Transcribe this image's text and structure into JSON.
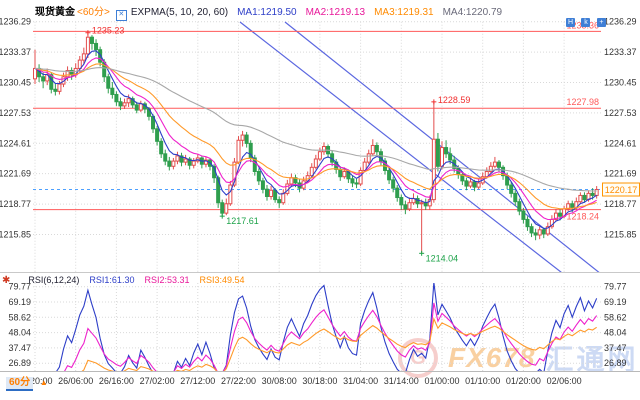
{
  "header": {
    "symbol": "现货黄金",
    "period": "<60分>",
    "checkbox_glyph": "✕",
    "indicator": "EXPMA(5, 10, 20, 60)",
    "ma_values": [
      {
        "text": "MA1:1219.50",
        "color": "#2d3ec8"
      },
      {
        "text": "MA2:1219.13",
        "color": "#e8189a"
      },
      {
        "text": "MA3:1219.31",
        "color": "#ff8a00"
      },
      {
        "text": "MA4:1220.79",
        "color": "#6a6a7a"
      }
    ],
    "toolbar_icons": [
      {
        "glyph": "H"
      },
      {
        "glyph": "k"
      },
      {
        "glyph": "+"
      }
    ]
  },
  "rsi_header": {
    "flower_glyph": "✱",
    "params": "RSI(6,12,24)",
    "values": [
      {
        "text": "RSI1:61.30",
        "color": "#2d3ec8"
      },
      {
        "text": "RSI2:53.31",
        "color": "#e8189a"
      },
      {
        "text": "RSI3:49.54",
        "color": "#ff8a00"
      }
    ]
  },
  "footer": {
    "period_tab": "60分",
    "arrow_glyph": "▲"
  },
  "watermark": {
    "logo_letter": "G",
    "brand": "FX678",
    "brand_cn": "汇通网"
  },
  "chart_data": {
    "type": "candlestick",
    "title": "现货黄金 60分 K线 + EXPMA(5,10,20,60) + RSI(6,12,24)",
    "y_axis_main": [
      1236.29,
      1233.37,
      1230.45,
      1227.53,
      1224.61,
      1221.69,
      1218.77,
      1215.85
    ],
    "y_axis_rsi": [
      79.77,
      69.19,
      58.62,
      48.04,
      37.47,
      26.89
    ],
    "x_ticks": [
      "25/20:00",
      "26/06:00",
      "26/16:00",
      "27/02:00",
      "27/12:00",
      "27/22:00",
      "30/08:00",
      "30/18:00",
      "31/04:00",
      "31/14:00",
      "01/00:00",
      "01/10:00",
      "01/20:00",
      "02/06:00"
    ],
    "levels": [
      {
        "price": 1235.36,
        "label": "1235.36",
        "color": "#ff5a5a",
        "label_pos": "above"
      },
      {
        "price": 1227.98,
        "label": "1227.98",
        "color": "#ff5a5a",
        "label_pos": "above"
      },
      {
        "price": 1218.24,
        "label": "1218.24",
        "color": "#ff5a5a",
        "label_pos": "below"
      }
    ],
    "current_price": {
      "value": 1220.17,
      "label": "1220.17",
      "line_color": "#4da0ff",
      "box_color": "#ff9500",
      "text_color": "#ff8c00"
    },
    "markers": [
      {
        "index": 13,
        "price": 1235.23,
        "label": "1235.23",
        "type": "high",
        "color": "#f03030"
      },
      {
        "index": 98,
        "price": 1228.59,
        "label": "1228.59",
        "type": "high",
        "color": "#f03030"
      },
      {
        "index": 46,
        "price": 1217.61,
        "label": "1217.61",
        "type": "low",
        "color": "#1ea34a"
      },
      {
        "index": 95,
        "price": 1214.04,
        "label": "1214.04",
        "type": "low",
        "color": "#1ea34a"
      }
    ],
    "trendlines": [
      {
        "x1": 240,
        "y1": 22,
        "x2": 575,
        "y2": 283,
        "color": "#5b67e0"
      },
      {
        "x1": 285,
        "y1": 22,
        "x2": 601,
        "y2": 274,
        "color": "#5b67e0"
      }
    ],
    "expma_periods": [
      5,
      10,
      20,
      60
    ],
    "expma_colors": [
      "#2d3ec8",
      "#ee22cc",
      "#ff9a2a",
      "#a8a8a8"
    ],
    "rsi_periods": [
      6,
      12,
      24
    ],
    "rsi_colors": [
      "#2d3ec8",
      "#ee22cc",
      "#ff9a2a"
    ],
    "candle_up_color": "#e34d4d",
    "candle_down_color": "#2f9e4e",
    "candles": [
      [
        1230.8,
        1233.6,
        1230.3,
        1231.8
      ],
      [
        1231.8,
        1232.2,
        1230.5,
        1231.0
      ],
      [
        1231.0,
        1231.4,
        1229.9,
        1230.6
      ],
      [
        1230.6,
        1231.8,
        1230.2,
        1231.2
      ],
      [
        1231.2,
        1231.4,
        1229.4,
        1229.8
      ],
      [
        1229.8,
        1230.4,
        1229.2,
        1229.6
      ],
      [
        1229.6,
        1230.6,
        1229.3,
        1230.3
      ],
      [
        1230.3,
        1231.4,
        1230.0,
        1231.0
      ],
      [
        1231.0,
        1232.0,
        1230.6,
        1231.6
      ],
      [
        1231.6,
        1231.9,
        1230.7,
        1231.2
      ],
      [
        1231.2,
        1232.3,
        1230.9,
        1231.8
      ],
      [
        1231.8,
        1233.0,
        1231.4,
        1232.6
      ],
      [
        1232.6,
        1233.8,
        1232.2,
        1233.2
      ],
      [
        1233.2,
        1235.23,
        1232.8,
        1234.8
      ],
      [
        1234.8,
        1235.0,
        1233.6,
        1234.2
      ],
      [
        1234.2,
        1234.6,
        1233.0,
        1233.6
      ],
      [
        1233.6,
        1233.9,
        1232.0,
        1232.4
      ],
      [
        1232.4,
        1232.7,
        1230.5,
        1231.0
      ],
      [
        1231.0,
        1231.3,
        1229.4,
        1229.9
      ],
      [
        1229.9,
        1230.5,
        1228.9,
        1229.3
      ],
      [
        1229.3,
        1229.6,
        1228.2,
        1228.6
      ],
      [
        1228.6,
        1229.0,
        1227.8,
        1228.2
      ],
      [
        1228.2,
        1228.9,
        1227.9,
        1228.5
      ],
      [
        1228.5,
        1229.3,
        1228.1,
        1228.9
      ],
      [
        1228.9,
        1229.1,
        1228.0,
        1228.3
      ],
      [
        1228.3,
        1228.6,
        1227.5,
        1227.8
      ],
      [
        1227.8,
        1228.7,
        1227.6,
        1228.4
      ],
      [
        1228.4,
        1228.6,
        1227.5,
        1227.9
      ],
      [
        1227.9,
        1228.1,
        1226.8,
        1227.2
      ],
      [
        1227.2,
        1227.4,
        1225.6,
        1226.0
      ],
      [
        1226.0,
        1226.3,
        1224.4,
        1224.8
      ],
      [
        1224.8,
        1225.1,
        1223.2,
        1223.6
      ],
      [
        1223.6,
        1224.0,
        1222.5,
        1222.9
      ],
      [
        1222.9,
        1223.3,
        1222.0,
        1222.4
      ],
      [
        1222.4,
        1223.2,
        1222.1,
        1222.9
      ],
      [
        1222.9,
        1223.8,
        1222.6,
        1223.4
      ],
      [
        1223.4,
        1223.7,
        1222.4,
        1222.8
      ],
      [
        1222.8,
        1223.5,
        1222.5,
        1223.1
      ],
      [
        1223.1,
        1223.3,
        1222.1,
        1222.5
      ],
      [
        1222.5,
        1223.2,
        1222.2,
        1222.9
      ],
      [
        1222.9,
        1223.6,
        1222.7,
        1223.2
      ],
      [
        1223.2,
        1223.4,
        1222.2,
        1222.6
      ],
      [
        1222.6,
        1223.3,
        1222.3,
        1223.0
      ],
      [
        1223.0,
        1223.2,
        1222.0,
        1222.4
      ],
      [
        1222.4,
        1222.6,
        1220.8,
        1221.3
      ],
      [
        1221.3,
        1221.5,
        1218.4,
        1218.9
      ],
      [
        1218.9,
        1219.2,
        1217.61,
        1217.9
      ],
      [
        1217.9,
        1219.3,
        1217.7,
        1218.8
      ],
      [
        1218.8,
        1221.0,
        1218.6,
        1220.6
      ],
      [
        1220.6,
        1223.2,
        1220.4,
        1222.8
      ],
      [
        1222.8,
        1225.3,
        1222.6,
        1224.9
      ],
      [
        1224.9,
        1225.8,
        1224.3,
        1225.4
      ],
      [
        1225.4,
        1225.7,
        1224.2,
        1224.6
      ],
      [
        1224.6,
        1224.9,
        1222.8,
        1223.2
      ],
      [
        1223.2,
        1223.5,
        1221.5,
        1221.9
      ],
      [
        1221.9,
        1222.2,
        1220.6,
        1221.0
      ],
      [
        1221.0,
        1221.3,
        1219.8,
        1220.2
      ],
      [
        1220.2,
        1220.6,
        1219.1,
        1219.5
      ],
      [
        1219.5,
        1220.5,
        1219.2,
        1220.1
      ],
      [
        1220.1,
        1220.3,
        1218.9,
        1219.2
      ],
      [
        1219.2,
        1219.5,
        1218.4,
        1218.9
      ],
      [
        1218.9,
        1220.2,
        1218.7,
        1219.8
      ],
      [
        1219.8,
        1221.1,
        1219.6,
        1220.7
      ],
      [
        1220.7,
        1221.7,
        1220.4,
        1221.3
      ],
      [
        1221.3,
        1221.6,
        1220.4,
        1220.8
      ],
      [
        1220.8,
        1221.2,
        1219.9,
        1220.3
      ],
      [
        1220.3,
        1221.4,
        1220.1,
        1221.0
      ],
      [
        1221.0,
        1221.9,
        1220.8,
        1221.5
      ],
      [
        1221.5,
        1222.7,
        1221.3,
        1222.3
      ],
      [
        1222.3,
        1223.5,
        1222.1,
        1223.1
      ],
      [
        1223.1,
        1224.2,
        1222.9,
        1223.8
      ],
      [
        1223.8,
        1224.7,
        1223.5,
        1224.3
      ],
      [
        1224.3,
        1224.5,
        1223.2,
        1223.6
      ],
      [
        1223.6,
        1223.9,
        1222.4,
        1222.8
      ],
      [
        1222.8,
        1223.1,
        1221.7,
        1222.1
      ],
      [
        1222.1,
        1222.4,
        1221.0,
        1221.4
      ],
      [
        1221.4,
        1222.3,
        1221.2,
        1221.9
      ],
      [
        1221.9,
        1222.1,
        1220.8,
        1221.2
      ],
      [
        1221.2,
        1221.5,
        1220.4,
        1220.8
      ],
      [
        1220.8,
        1221.2,
        1220.3,
        1220.7
      ],
      [
        1220.7,
        1222.3,
        1220.5,
        1222.0
      ],
      [
        1222.0,
        1223.2,
        1221.8,
        1222.8
      ],
      [
        1222.8,
        1224.0,
        1222.6,
        1223.6
      ],
      [
        1223.6,
        1225.0,
        1223.4,
        1224.4
      ],
      [
        1224.4,
        1224.7,
        1223.4,
        1223.8
      ],
      [
        1223.8,
        1224.1,
        1222.5,
        1222.9
      ],
      [
        1222.9,
        1223.2,
        1221.6,
        1222.0
      ],
      [
        1222.0,
        1222.3,
        1220.7,
        1221.1
      ],
      [
        1221.1,
        1221.4,
        1219.9,
        1220.3
      ],
      [
        1220.3,
        1220.6,
        1219.0,
        1219.4
      ],
      [
        1219.4,
        1219.7,
        1218.2,
        1218.7
      ],
      [
        1218.7,
        1219.1,
        1217.8,
        1218.3
      ],
      [
        1218.3,
        1219.4,
        1218.1,
        1218.9
      ],
      [
        1218.9,
        1219.8,
        1218.7,
        1219.3
      ],
      [
        1219.3,
        1219.6,
        1218.4,
        1218.8
      ],
      [
        1218.8,
        1219.2,
        1214.04,
        1218.9
      ],
      [
        1218.9,
        1219.3,
        1218.2,
        1218.6
      ],
      [
        1218.6,
        1219.6,
        1218.2,
        1219.2
      ],
      [
        1219.2,
        1228.59,
        1218.9,
        1225.0
      ],
      [
        1225.0,
        1225.6,
        1221.9,
        1222.4
      ],
      [
        1222.4,
        1224.8,
        1222.1,
        1224.2
      ],
      [
        1224.2,
        1224.9,
        1223.2,
        1223.6
      ],
      [
        1223.6,
        1224.2,
        1222.6,
        1223.0
      ],
      [
        1223.0,
        1223.4,
        1221.8,
        1222.2
      ],
      [
        1222.2,
        1222.5,
        1221.2,
        1221.6
      ],
      [
        1221.6,
        1221.9,
        1220.6,
        1221.0
      ],
      [
        1221.0,
        1221.3,
        1220.1,
        1220.5
      ],
      [
        1220.5,
        1221.3,
        1220.3,
        1220.9
      ],
      [
        1220.9,
        1221.1,
        1220.0,
        1220.4
      ],
      [
        1220.4,
        1221.2,
        1220.2,
        1220.8
      ],
      [
        1220.8,
        1221.8,
        1220.6,
        1221.4
      ],
      [
        1221.4,
        1222.3,
        1221.2,
        1221.9
      ],
      [
        1221.9,
        1222.8,
        1221.7,
        1222.4
      ],
      [
        1222.4,
        1223.3,
        1222.2,
        1222.8
      ],
      [
        1222.8,
        1223.0,
        1221.9,
        1222.3
      ],
      [
        1222.3,
        1222.5,
        1221.1,
        1221.5
      ],
      [
        1221.5,
        1221.8,
        1220.2,
        1220.6
      ],
      [
        1220.6,
        1220.9,
        1219.4,
        1219.8
      ],
      [
        1219.8,
        1220.1,
        1218.6,
        1219.0
      ],
      [
        1219.0,
        1219.3,
        1217.7,
        1218.1
      ],
      [
        1218.1,
        1218.4,
        1216.9,
        1217.3
      ],
      [
        1217.3,
        1217.6,
        1216.2,
        1216.6
      ],
      [
        1216.6,
        1216.9,
        1215.6,
        1216.0
      ],
      [
        1216.0,
        1216.4,
        1215.3,
        1215.8
      ],
      [
        1215.8,
        1216.6,
        1215.4,
        1216.3
      ],
      [
        1216.3,
        1216.5,
        1215.5,
        1215.9
      ],
      [
        1215.9,
        1217.0,
        1215.7,
        1216.6
      ],
      [
        1216.6,
        1217.7,
        1216.4,
        1217.3
      ],
      [
        1217.3,
        1218.3,
        1217.1,
        1217.9
      ],
      [
        1217.9,
        1218.3,
        1217.2,
        1217.6
      ],
      [
        1217.6,
        1218.6,
        1217.4,
        1218.3
      ],
      [
        1218.3,
        1219.1,
        1218.1,
        1218.8
      ],
      [
        1218.8,
        1219.1,
        1218.0,
        1218.4
      ],
      [
        1218.4,
        1219.4,
        1218.2,
        1219.0
      ],
      [
        1219.0,
        1219.9,
        1218.8,
        1219.6
      ],
      [
        1219.6,
        1219.9,
        1218.9,
        1219.2
      ],
      [
        1219.2,
        1220.1,
        1219.0,
        1219.8
      ],
      [
        1219.8,
        1220.3,
        1219.2,
        1219.6
      ],
      [
        1219.6,
        1220.5,
        1219.3,
        1220.17
      ]
    ]
  }
}
